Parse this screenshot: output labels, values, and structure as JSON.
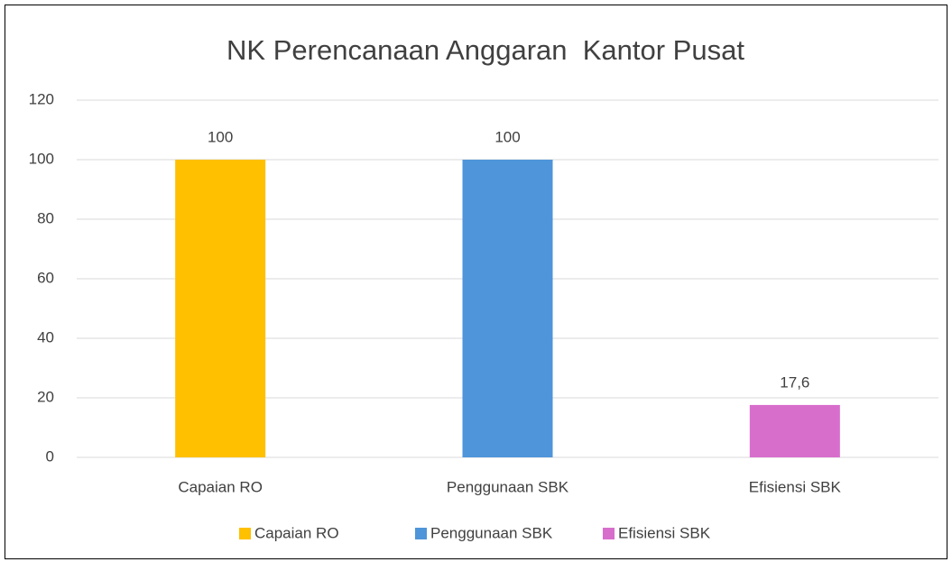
{
  "chart_data": {
    "type": "bar",
    "title": "NK Perencanaan Anggaran  Kantor Pusat",
    "categories": [
      "Capaian RO",
      "Penggunaan SBK",
      "Efisiensi SBK"
    ],
    "values": [
      100,
      100,
      17.6
    ],
    "value_labels": [
      "100",
      "100",
      "17,6"
    ],
    "colors": [
      "#ffc000",
      "#4e95d9",
      "#d86ecc"
    ],
    "ylim": [
      0,
      120
    ],
    "yticks": [
      0,
      20,
      40,
      60,
      80,
      100,
      120
    ],
    "grid": true,
    "legend": "bottom"
  }
}
